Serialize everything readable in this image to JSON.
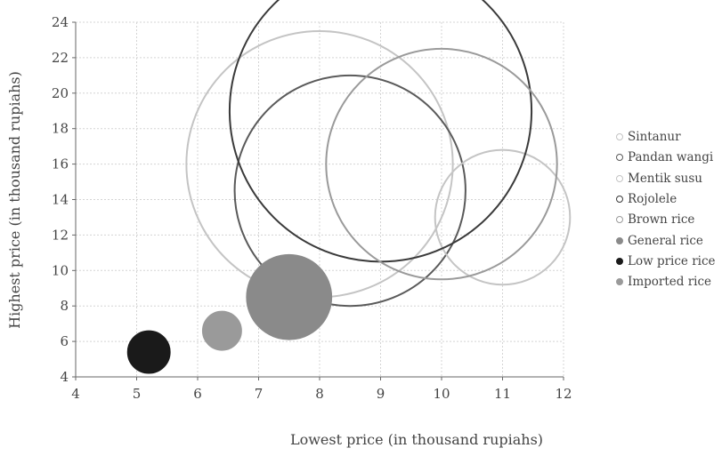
{
  "chart_data": {
    "type": "bubble",
    "xlabel": "Lowest price (in thousand rupiahs)",
    "ylabel": "Highest price (in thousand rupiahs)",
    "xlim": [
      4,
      12
    ],
    "ylim": [
      4,
      24
    ],
    "xticks": [
      4,
      5,
      6,
      7,
      8,
      9,
      10,
      11,
      12
    ],
    "yticks": [
      4,
      6,
      8,
      10,
      12,
      14,
      16,
      18,
      20,
      22,
      24
    ],
    "grid": true,
    "legend_position": "right",
    "series": [
      {
        "name": "Sintanur",
        "x": 8.0,
        "y": 16.0,
        "size": 7.5,
        "style": "open",
        "color": "#c4c4c4"
      },
      {
        "name": "Pandan wangi",
        "x": 8.5,
        "y": 14.5,
        "size": 6.5,
        "style": "open",
        "color": "#5a5a5a"
      },
      {
        "name": "Mentik susu",
        "x": 11.0,
        "y": 13.0,
        "size": 3.8,
        "style": "open",
        "color": "#c4c4c4"
      },
      {
        "name": "Rojolele",
        "x": 9.0,
        "y": 19.0,
        "size": 8.5,
        "style": "open",
        "color": "#3a3a3a"
      },
      {
        "name": "Brown rice",
        "x": 10.0,
        "y": 16.0,
        "size": 6.5,
        "style": "open",
        "color": "#9a9a9a"
      },
      {
        "name": "General rice",
        "x": 7.5,
        "y": 8.5,
        "size": 2.4,
        "style": "filled",
        "color": "#8a8a8a"
      },
      {
        "name": "Low price rice",
        "x": 5.2,
        "y": 5.4,
        "size": 1.2,
        "style": "filled",
        "color": "#1a1a1a"
      },
      {
        "name": "Imported rice",
        "x": 6.4,
        "y": 6.6,
        "size": 1.1,
        "style": "filled",
        "color": "#9a9a9a"
      }
    ]
  }
}
